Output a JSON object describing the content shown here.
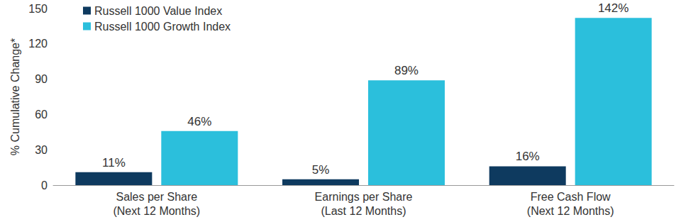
{
  "chart_data": {
    "type": "bar",
    "y_label": "% Cumulative Change*",
    "categories": [
      "Sales per Share\n(Next 12 Months)",
      "Earnings per Share\n(Last 12 Months)",
      "Free Cash Flow\n(Next 12 Months)"
    ],
    "series": [
      {
        "name": "Russell 1000 Value Index",
        "color": "#0e3a5f",
        "values": [
          11,
          5,
          16
        ],
        "value_labels": [
          "11%",
          "5%",
          "16%"
        ]
      },
      {
        "name": "Russell 1000 Growth Index",
        "color": "#2bbfdc",
        "values": [
          46,
          89,
          142
        ],
        "value_labels": [
          "46%",
          "89%",
          "142%"
        ]
      }
    ],
    "ylim": [
      0,
      150
    ],
    "yticks": [
      0,
      30,
      60,
      90,
      120,
      150
    ],
    "grid": false,
    "legend": "upper left",
    "data_labels": true
  }
}
